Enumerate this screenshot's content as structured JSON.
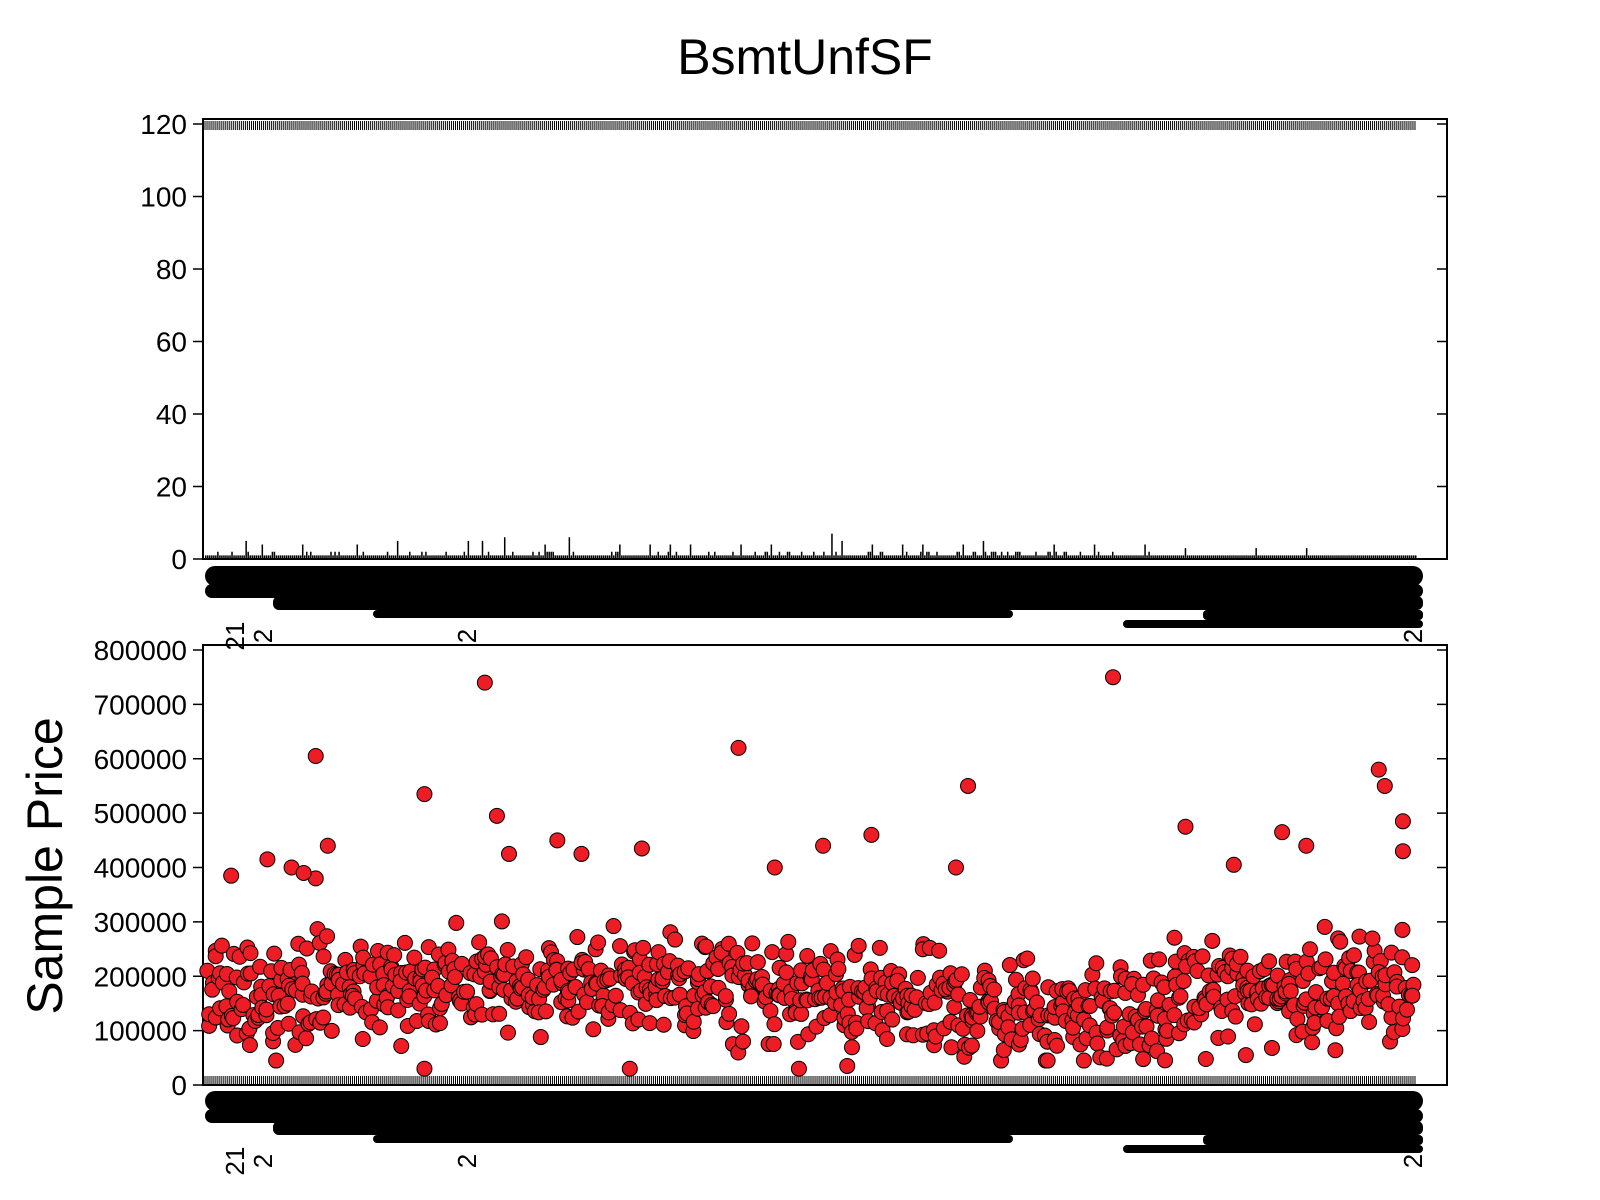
{
  "chart_data": [
    {
      "type": "bar",
      "title": "BsmtUnfSF",
      "xlabel": "",
      "ylabel": "",
      "ylim": [
        0,
        120
      ],
      "yticks": [
        0,
        20,
        40,
        60,
        80,
        100,
        120
      ],
      "bar_count": 600,
      "baseline_value": 1,
      "bar_color": "#000000",
      "notable_bars": [
        {
          "index": 20,
          "value": 5
        },
        {
          "index": 28,
          "value": 4
        },
        {
          "index": 48,
          "value": 4
        },
        {
          "index": 75,
          "value": 4
        },
        {
          "index": 95,
          "value": 5
        },
        {
          "index": 130,
          "value": 5
        },
        {
          "index": 137,
          "value": 5
        },
        {
          "index": 148,
          "value": 6
        },
        {
          "index": 168,
          "value": 4
        },
        {
          "index": 180,
          "value": 6
        },
        {
          "index": 205,
          "value": 4
        },
        {
          "index": 220,
          "value": 4
        },
        {
          "index": 230,
          "value": 4
        },
        {
          "index": 240,
          "value": 4
        },
        {
          "index": 265,
          "value": 4
        },
        {
          "index": 280,
          "value": 4
        },
        {
          "index": 310,
          "value": 7
        },
        {
          "index": 315,
          "value": 5
        },
        {
          "index": 330,
          "value": 4
        },
        {
          "index": 345,
          "value": 4
        },
        {
          "index": 355,
          "value": 4
        },
        {
          "index": 375,
          "value": 4
        },
        {
          "index": 385,
          "value": 5
        },
        {
          "index": 420,
          "value": 4
        },
        {
          "index": 440,
          "value": 4
        },
        {
          "index": 465,
          "value": 4
        },
        {
          "index": 485,
          "value": 3
        },
        {
          "index": 520,
          "value": 3
        },
        {
          "index": 545,
          "value": 3
        }
      ],
      "x_tick_labels_visible": [
        "21",
        "2",
        "2",
        "2"
      ]
    },
    {
      "type": "scatter",
      "xlabel": "",
      "ylabel": "Sample Price",
      "ylim": [
        0,
        800000
      ],
      "yticks": [
        0,
        100000,
        200000,
        300000,
        400000,
        500000,
        600000,
        700000,
        800000
      ],
      "marker_color": "#ee1c25",
      "marker_edge": "#000000",
      "point_count": 900,
      "typical_range": [
        80000,
        300000
      ],
      "outliers": [
        {
          "i": 0.02,
          "y": 385000
        },
        {
          "i": 0.05,
          "y": 415000
        },
        {
          "i": 0.07,
          "y": 400000
        },
        {
          "i": 0.09,
          "y": 380000
        },
        {
          "i": 0.08,
          "y": 390000
        },
        {
          "i": 0.1,
          "y": 440000
        },
        {
          "i": 0.09,
          "y": 605000
        },
        {
          "i": 0.18,
          "y": 535000
        },
        {
          "i": 0.23,
          "y": 740000
        },
        {
          "i": 0.24,
          "y": 495000
        },
        {
          "i": 0.25,
          "y": 425000
        },
        {
          "i": 0.31,
          "y": 425000
        },
        {
          "i": 0.29,
          "y": 450000
        },
        {
          "i": 0.36,
          "y": 435000
        },
        {
          "i": 0.44,
          "y": 620000
        },
        {
          "i": 0.47,
          "y": 400000
        },
        {
          "i": 0.51,
          "y": 440000
        },
        {
          "i": 0.55,
          "y": 460000
        },
        {
          "i": 0.62,
          "y": 400000
        },
        {
          "i": 0.63,
          "y": 550000
        },
        {
          "i": 0.75,
          "y": 750000
        },
        {
          "i": 0.81,
          "y": 475000
        },
        {
          "i": 0.85,
          "y": 405000
        },
        {
          "i": 0.89,
          "y": 465000
        },
        {
          "i": 0.91,
          "y": 440000
        },
        {
          "i": 0.97,
          "y": 580000
        },
        {
          "i": 0.975,
          "y": 550000
        },
        {
          "i": 0.99,
          "y": 485000
        },
        {
          "i": 0.99,
          "y": 430000
        },
        {
          "i": 0.18,
          "y": 30000
        },
        {
          "i": 0.35,
          "y": 30000
        },
        {
          "i": 0.49,
          "y": 30000
        },
        {
          "i": 0.53,
          "y": 35000
        },
        {
          "i": 0.86,
          "y": 55000
        }
      ],
      "x_tick_labels_visible": [
        "21",
        "2",
        "2",
        "2"
      ]
    }
  ]
}
